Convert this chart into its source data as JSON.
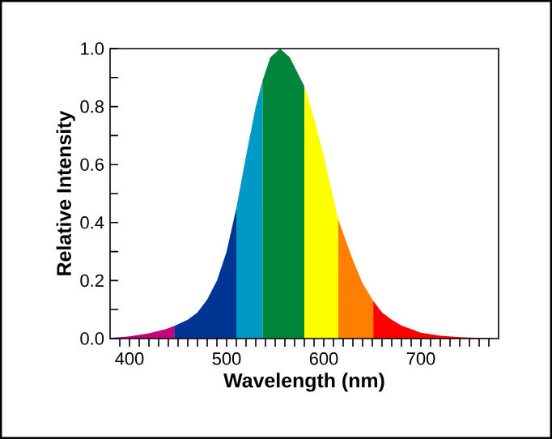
{
  "chart_data": {
    "type": "area",
    "xlabel": "Wavelength (nm)",
    "ylabel": "Relative Intensity",
    "xlim": [
      380,
      780
    ],
    "ylim": [
      0,
      1
    ],
    "xticks": [
      {
        "value": 390,
        "label": null
      },
      400,
      {
        "value": 410,
        "label": null
      },
      {
        "value": 420,
        "label": null
      },
      {
        "value": 430,
        "label": null
      },
      {
        "value": 440,
        "label": null
      },
      {
        "value": 450,
        "label": null
      },
      {
        "value": 460,
        "label": null
      },
      {
        "value": 470,
        "label": null
      },
      {
        "value": 480,
        "label": null
      },
      {
        "value": 490,
        "label": null
      },
      500,
      {
        "value": 510,
        "label": null
      },
      {
        "value": 520,
        "label": null
      },
      {
        "value": 530,
        "label": null
      },
      {
        "value": 540,
        "label": null
      },
      {
        "value": 550,
        "label": null
      },
      {
        "value": 560,
        "label": null
      },
      {
        "value": 570,
        "label": null
      },
      {
        "value": 580,
        "label": null
      },
      {
        "value": 590,
        "label": null
      },
      600,
      {
        "value": 610,
        "label": null
      },
      {
        "value": 620,
        "label": null
      },
      {
        "value": 630,
        "label": null
      },
      {
        "value": 640,
        "label": null
      },
      {
        "value": 650,
        "label": null
      },
      {
        "value": 660,
        "label": null
      },
      {
        "value": 670,
        "label": null
      },
      {
        "value": 680,
        "label": null
      },
      {
        "value": 690,
        "label": null
      },
      700,
      {
        "value": 710,
        "label": null
      },
      {
        "value": 720,
        "label": null
      },
      {
        "value": 730,
        "label": null
      },
      {
        "value": 740,
        "label": null
      },
      {
        "value": 750,
        "label": null
      },
      {
        "value": 760,
        "label": null
      },
      {
        "value": 770,
        "label": null
      }
    ],
    "yticks": [
      {
        "value": 0,
        "label": "0.0"
      },
      {
        "value": 0.1,
        "label": null
      },
      {
        "value": 0.2,
        "label": "0.2"
      },
      {
        "value": 0.3,
        "label": null
      },
      {
        "value": 0.4,
        "label": "0.4"
      },
      {
        "value": 0.5,
        "label": null
      },
      {
        "value": 0.6,
        "label": "0.6"
      },
      {
        "value": 0.7,
        "label": null
      },
      {
        "value": 0.8,
        "label": "0.8"
      },
      {
        "value": 0.9,
        "label": null
      },
      {
        "value": 1,
        "label": "1.0"
      }
    ],
    "grid": false,
    "legend": false,
    "series": [
      {
        "color": "#c8007e",
        "x": [
          380,
          400,
          420,
          437,
          446
        ],
        "values": [
          0.002,
          0.008,
          0.018,
          0.032,
          0.043
        ]
      },
      {
        "color": "#003594",
        "x": [
          446,
          460,
          470,
          480,
          490,
          500,
          510
        ],
        "values": [
          0.043,
          0.065,
          0.09,
          0.135,
          0.2,
          0.3,
          0.45
        ]
      },
      {
        "color": "#0099c6",
        "x": [
          510,
          520,
          530,
          537
        ],
        "values": [
          0.45,
          0.63,
          0.8,
          0.89
        ]
      },
      {
        "color": "#00853a",
        "x": [
          537,
          545,
          555,
          565,
          580
        ],
        "values": [
          0.89,
          0.97,
          1.0,
          0.97,
          0.87
        ]
      },
      {
        "color": "#ffff00",
        "x": [
          580,
          590,
          600,
          615
        ],
        "values": [
          0.87,
          0.76,
          0.63,
          0.41
        ]
      },
      {
        "color": "#ff7f00",
        "x": [
          615,
          630,
          640,
          651
        ],
        "values": [
          0.41,
          0.27,
          0.19,
          0.13
        ]
      },
      {
        "color": "#ff0000",
        "x": [
          651,
          660,
          670,
          680,
          700,
          720,
          740,
          760,
          780
        ],
        "values": [
          0.13,
          0.09,
          0.065,
          0.045,
          0.02,
          0.01,
          0.005,
          0.002,
          0.001
        ]
      }
    ]
  }
}
